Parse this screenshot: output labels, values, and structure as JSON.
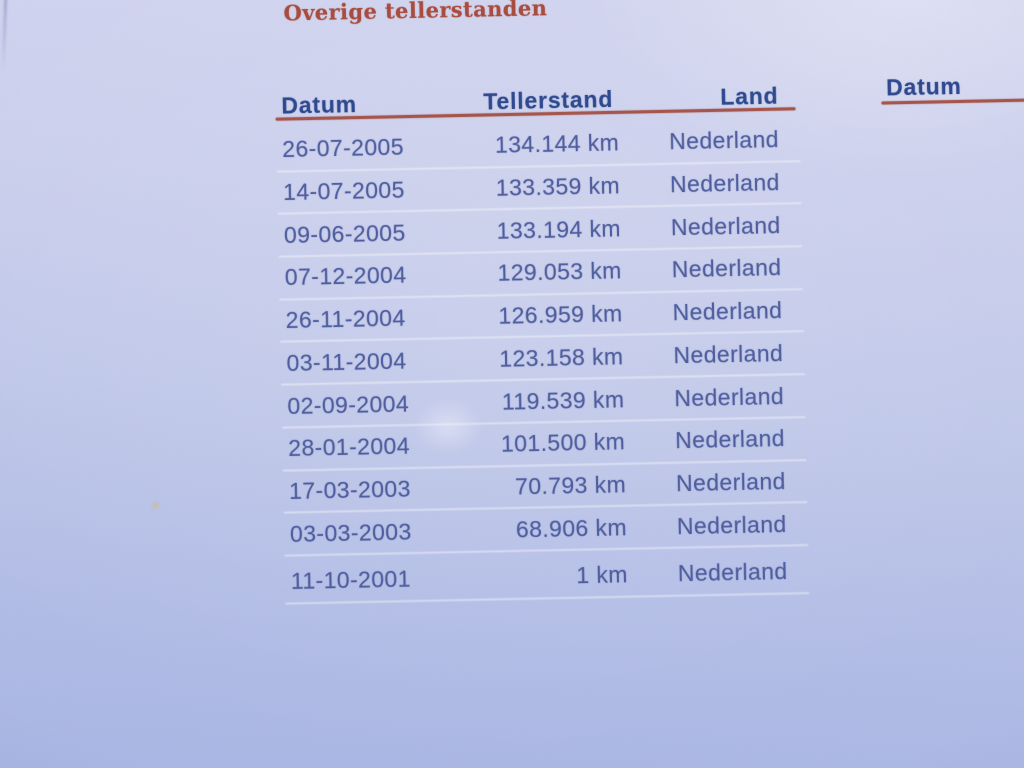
{
  "document": {
    "title": "Overige tellerstanden"
  },
  "odometer_table": {
    "headers": {
      "datum": "Datum",
      "tellerstand": "Tellerstand",
      "land": "Land"
    },
    "rows": [
      {
        "datum": "26-07-2005",
        "tellerstand": "134.144 km",
        "land": "Nederland"
      },
      {
        "datum": "14-07-2005",
        "tellerstand": "133.359 km",
        "land": "Nederland"
      },
      {
        "datum": "09-06-2005",
        "tellerstand": "133.194 km",
        "land": "Nederland"
      },
      {
        "datum": "07-12-2004",
        "tellerstand": "129.053 km",
        "land": "Nederland"
      },
      {
        "datum": "26-11-2004",
        "tellerstand": "126.959 km",
        "land": "Nederland"
      },
      {
        "datum": "03-11-2004",
        "tellerstand": "123.158 km",
        "land": "Nederland"
      },
      {
        "datum": "02-09-2004",
        "tellerstand": "119.539 km",
        "land": "Nederland"
      },
      {
        "datum": "28-01-2004",
        "tellerstand": "101.500 km",
        "land": "Nederland"
      },
      {
        "datum": "17-03-2003",
        "tellerstand": "70.793 km",
        "land": "Nederland"
      },
      {
        "datum": "03-03-2003",
        "tellerstand": "68.906 km",
        "land": "Nederland"
      },
      {
        "datum": "11-10-2001",
        "tellerstand": "1 km",
        "land": "Nederland"
      }
    ]
  },
  "secondary_table": {
    "headers": {
      "datum": "Datum"
    }
  },
  "colors": {
    "title_red": "#a84a3c",
    "header_blue": "#2c478e",
    "body_blue": "#4d5c9e",
    "rule_red": "#a5544a",
    "paper_top": "#d2d5f0",
    "paper_bottom": "#a9b5e3"
  }
}
